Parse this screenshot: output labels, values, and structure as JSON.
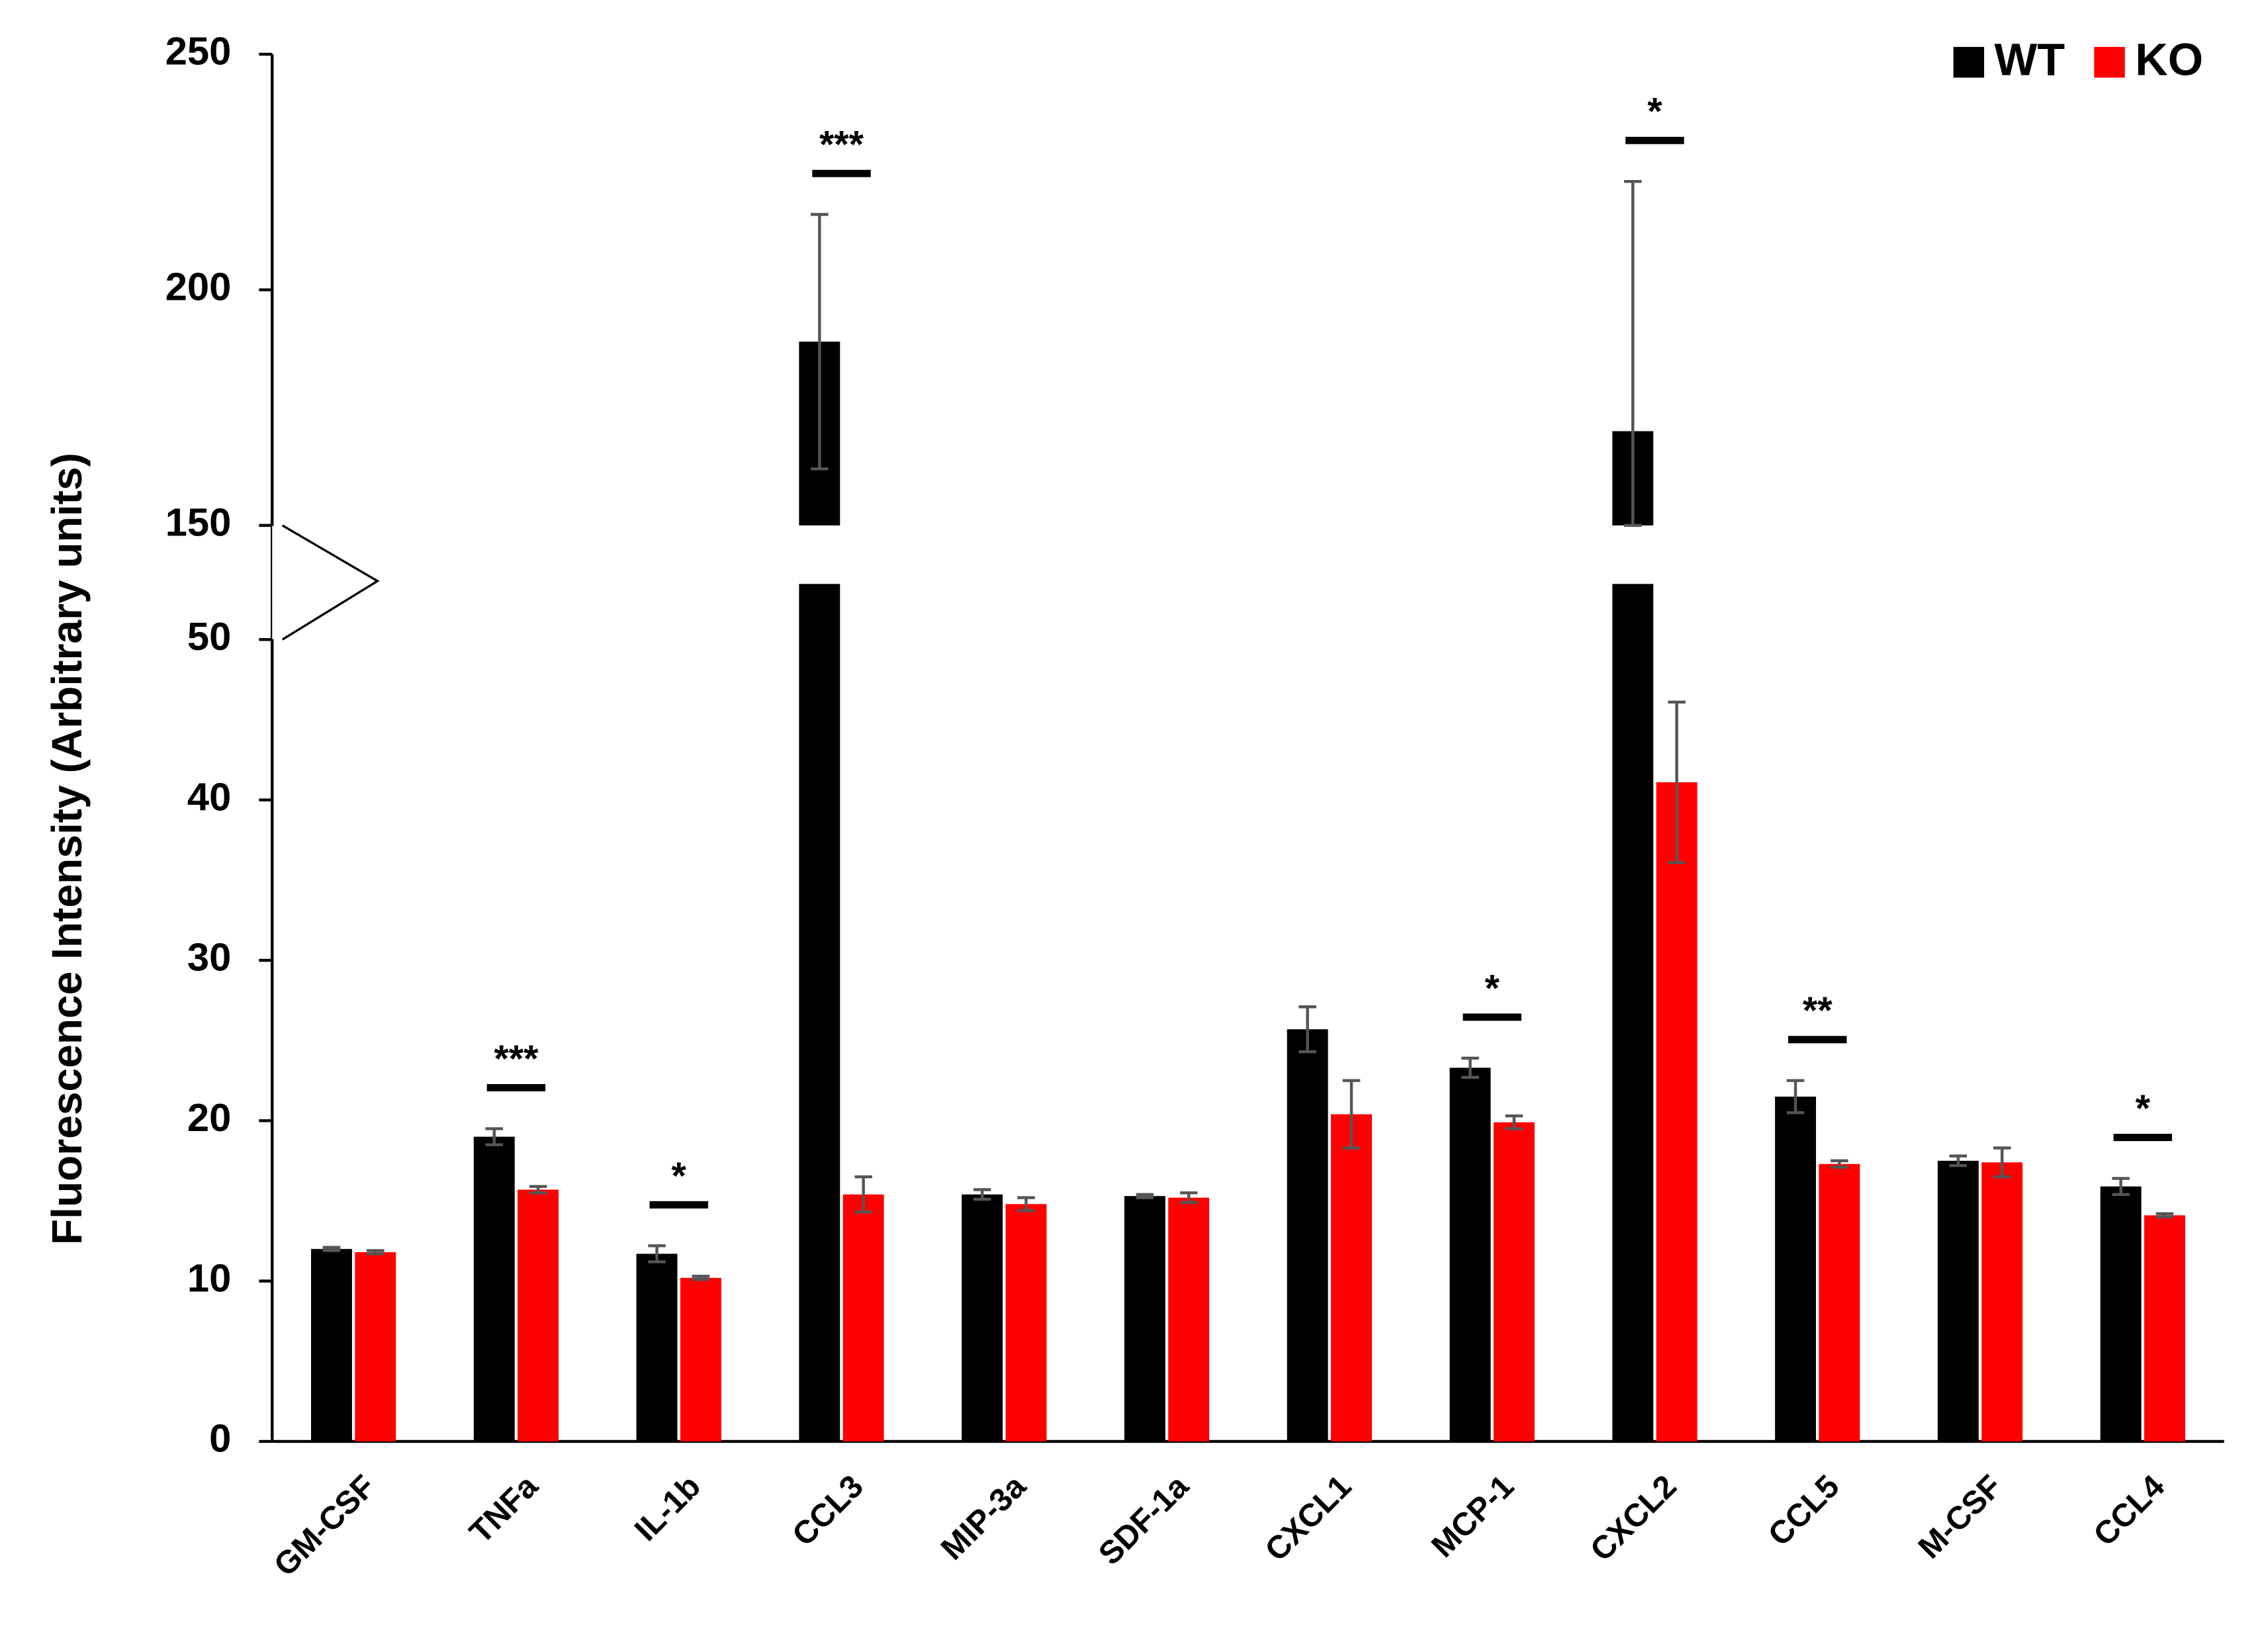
{
  "chart_data": {
    "type": "bar",
    "y_label": "Fluorescence Intensity (Arbitrary units)",
    "categories": [
      "GM-CSF",
      "TNFa",
      "IL-1b",
      "CCL3",
      "MIP-3a",
      "SDF-1a",
      "CXCL1",
      "MCP-1",
      "CXCL2",
      "CCL5",
      "M-CSF",
      "CCL4"
    ],
    "series": [
      {
        "name": "WT",
        "color": "#000000",
        "values": [
          12.0,
          19.0,
          11.7,
          189,
          15.4,
          15.3,
          25.7,
          23.3,
          170,
          21.5,
          17.5,
          15.9
        ],
        "errors": [
          0.1,
          0.5,
          0.5,
          27,
          0.3,
          0.1,
          1.4,
          0.6,
          53,
          1.0,
          0.3,
          0.5
        ]
      },
      {
        "name": "KO",
        "color": "#ff0000",
        "values": [
          11.8,
          15.7,
          10.2,
          15.4,
          14.8,
          15.2,
          20.4,
          19.9,
          41.1,
          17.3,
          17.4,
          14.1
        ],
        "errors": [
          0.1,
          0.2,
          0.1,
          1.1,
          0.4,
          0.3,
          2.1,
          0.4,
          5.0,
          0.2,
          0.9,
          0.1
        ]
      }
    ],
    "significance": [
      null,
      "***",
      "*",
      "***",
      null,
      null,
      null,
      "*",
      "*",
      "**",
      null,
      "*"
    ],
    "ylim": [
      0,
      250
    ],
    "axis_break": [
      50,
      150
    ],
    "yticks": [
      0,
      10,
      20,
      30,
      40,
      50,
      150,
      200,
      250
    ],
    "legend": "top-right"
  }
}
